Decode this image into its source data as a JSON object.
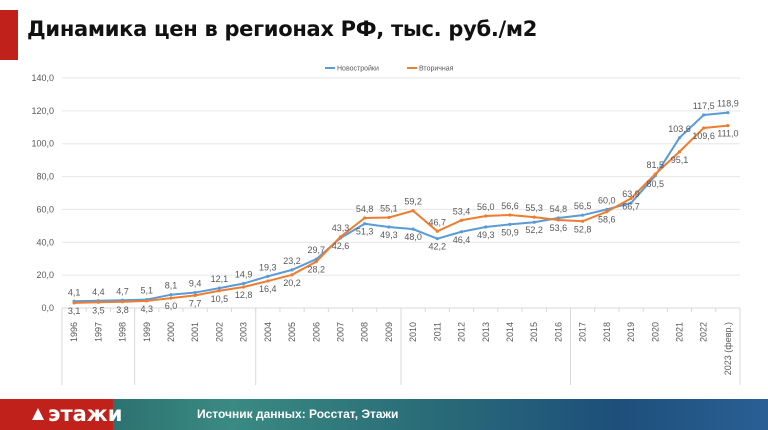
{
  "header": {
    "title": "Динамика цен в регионах РФ, тыс. руб./м2"
  },
  "footer": {
    "logo": "этажи",
    "source": "Источник данных: Росстат, Этажи"
  },
  "chart_data": {
    "type": "line",
    "title": "Динамика цен в регионах РФ, тыс. руб./м2",
    "categories": [
      "1996",
      "1997",
      "1998",
      "1999",
      "2000",
      "2001",
      "2002",
      "2003",
      "2004",
      "2005",
      "2006",
      "2007",
      "2008",
      "2009",
      "2010",
      "2011",
      "2012",
      "2013",
      "2014",
      "2015",
      "2016",
      "2017",
      "2018",
      "2019",
      "2020",
      "2021",
      "2022",
      "2023 (февр.)"
    ],
    "series": [
      {
        "name": "Новостройки",
        "color": "#5b9bd5",
        "values": [
          4.1,
          4.4,
          4.7,
          5.1,
          8.1,
          9.4,
          12.1,
          14.9,
          19.3,
          23.2,
          29.7,
          42.6,
          51.3,
          49.3,
          48.0,
          42.2,
          46.4,
          49.3,
          50.9,
          52.2,
          54.8,
          56.5,
          60.0,
          63.9,
          80.5,
          103.6,
          117.5,
          118.9
        ]
      },
      {
        "name": "Вторичная",
        "color": "#ed7d31",
        "values": [
          3.1,
          3.5,
          3.8,
          4.3,
          6.0,
          7.7,
          10.5,
          12.8,
          16.4,
          20.2,
          28.2,
          43.3,
          54.8,
          55.1,
          59.2,
          46.7,
          53.4,
          56.0,
          56.6,
          55.3,
          53.6,
          52.8,
          58.6,
          66.7,
          81.5,
          95.1,
          109.6,
          111.0
        ]
      }
    ],
    "yticks": [
      "0,0",
      "20,0",
      "40,0",
      "60,0",
      "80,0",
      "100,0",
      "120,0",
      "140,0"
    ],
    "ylim": [
      0,
      140
    ],
    "grid": true,
    "legend": "top-center",
    "data_labels": true
  }
}
